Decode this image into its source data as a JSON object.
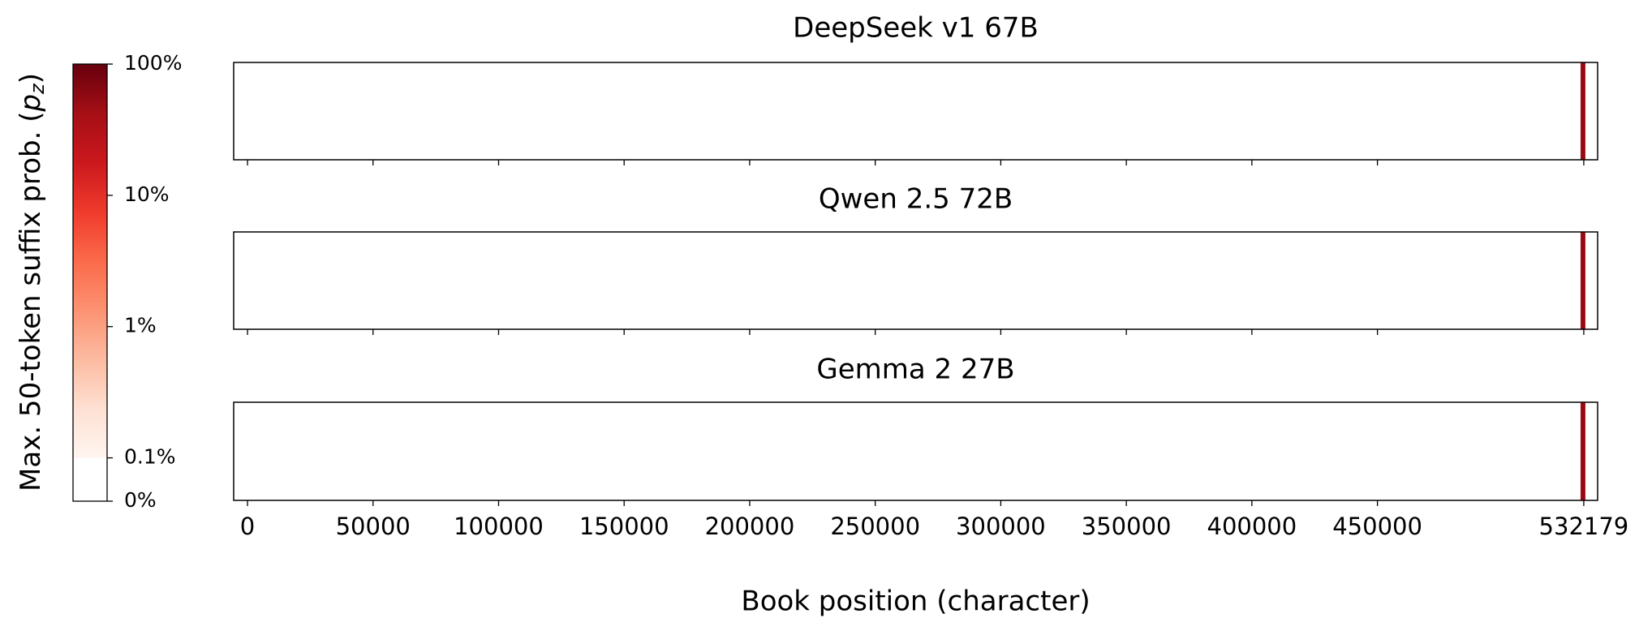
{
  "chart_data": [
    {
      "type": "strip",
      "title": "DeepSeek v1 67B",
      "x": [
        531700
      ],
      "values": [
        50
      ],
      "xlim": [
        -5500,
        537700
      ],
      "xticks": [
        0,
        50000,
        100000,
        150000,
        200000,
        250000,
        300000,
        350000,
        400000,
        450000,
        532179
      ]
    },
    {
      "type": "strip",
      "title": "Qwen 2.5 72B",
      "x": [
        531700
      ],
      "values": [
        50
      ],
      "xlim": [
        -5500,
        537700
      ],
      "xticks": [
        0,
        50000,
        100000,
        150000,
        200000,
        250000,
        300000,
        350000,
        400000,
        450000,
        532179
      ]
    },
    {
      "type": "strip",
      "title": "Gemma 2 27B",
      "x": [
        531700
      ],
      "values": [
        50
      ],
      "xlim": [
        -5500,
        537700
      ],
      "xticks": [
        0,
        50000,
        100000,
        150000,
        200000,
        250000,
        300000,
        350000,
        400000,
        450000,
        532179
      ],
      "xlabel": "Book position (character)"
    },
    {
      "type": "colorbar",
      "label": [
        "Max. 50-token suffix prob. (",
        "p",
        "z",
        ")"
      ],
      "scale": "symlog",
      "linthresh": 0.1,
      "linscale": 0.33,
      "lim": [
        0,
        100
      ],
      "ticks": [
        {
          "value": 0,
          "label": "0%"
        },
        {
          "value": 0.1,
          "label": "0.1%"
        },
        {
          "value": 1,
          "label": "1%"
        },
        {
          "value": 10,
          "label": "10%"
        },
        {
          "value": 100,
          "label": "100%"
        }
      ],
      "colors": [
        "#fff5f0",
        "#fee0d2",
        "#fcbba1",
        "#fc9272",
        "#fb6a4a",
        "#ef3b2c",
        "#cb181d",
        "#a50f15",
        "#67000d"
      ]
    }
  ]
}
